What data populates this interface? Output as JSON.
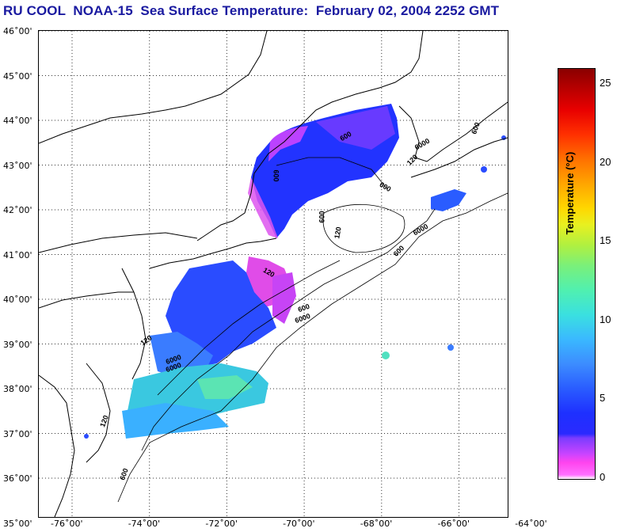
{
  "title": "RU COOL  NOAA-15  Sea Surface Temperature:  February 02, 2004 2252 GMT",
  "lat_labels": [
    "46˚00'",
    "45˚00'",
    "44˚00'",
    "43˚00'",
    "42˚00'",
    "41˚00'",
    "40˚00'",
    "39˚00'",
    "38˚00'",
    "37˚00'",
    "36˚00'",
    "35˚00'"
  ],
  "lon_labels": [
    "-76˚00'",
    "-74˚00'",
    "-72˚00'",
    "-70˚00'",
    "-68˚00'",
    "-66˚00'",
    "-64˚00'"
  ],
  "bathymetry_labels": [
    "600",
    "600",
    "600",
    "600",
    "600",
    "6000",
    "120",
    "600",
    "6000",
    "120",
    "600",
    "6000",
    "120",
    "6000",
    "600",
    "120",
    "6000",
    "120"
  ],
  "colorbar": {
    "label": "Temperature (°C)",
    "ticks": [
      "25",
      "20",
      "15",
      "10",
      "5",
      "0"
    ],
    "min": 0,
    "max": 26
  },
  "colors": {
    "title": "#1a1aa0",
    "land_outline": "#000000",
    "grid": "#333333"
  }
}
